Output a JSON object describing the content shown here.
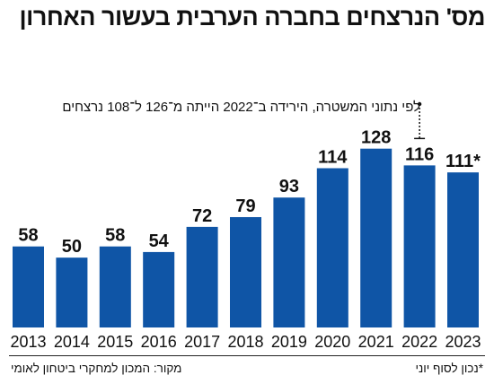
{
  "chart_data": {
    "type": "bar",
    "title": "מס' הנרצחים בחברה הערבית בעשור האחרון",
    "categories": [
      "2013",
      "2014",
      "2015",
      "2016",
      "2017",
      "2018",
      "2019",
      "2020",
      "2021",
      "2022",
      "2023"
    ],
    "values": [
      58,
      50,
      58,
      54,
      72,
      79,
      93,
      114,
      128,
      116,
      111
    ],
    "value_labels": [
      "58",
      "50",
      "58",
      "54",
      "72",
      "79",
      "93",
      "114",
      "128",
      "116",
      "111*"
    ],
    "bar_color": "#0f55a6",
    "grid": false,
    "annotation": "לפי נתוני המשטרה, הירידה ב־2022 הייתה מ־126 ל־108 נרצחים",
    "source": "מקור: המכון למחקרי ביטחון לאומי",
    "footnote": "*נכון לסוף יוני"
  }
}
